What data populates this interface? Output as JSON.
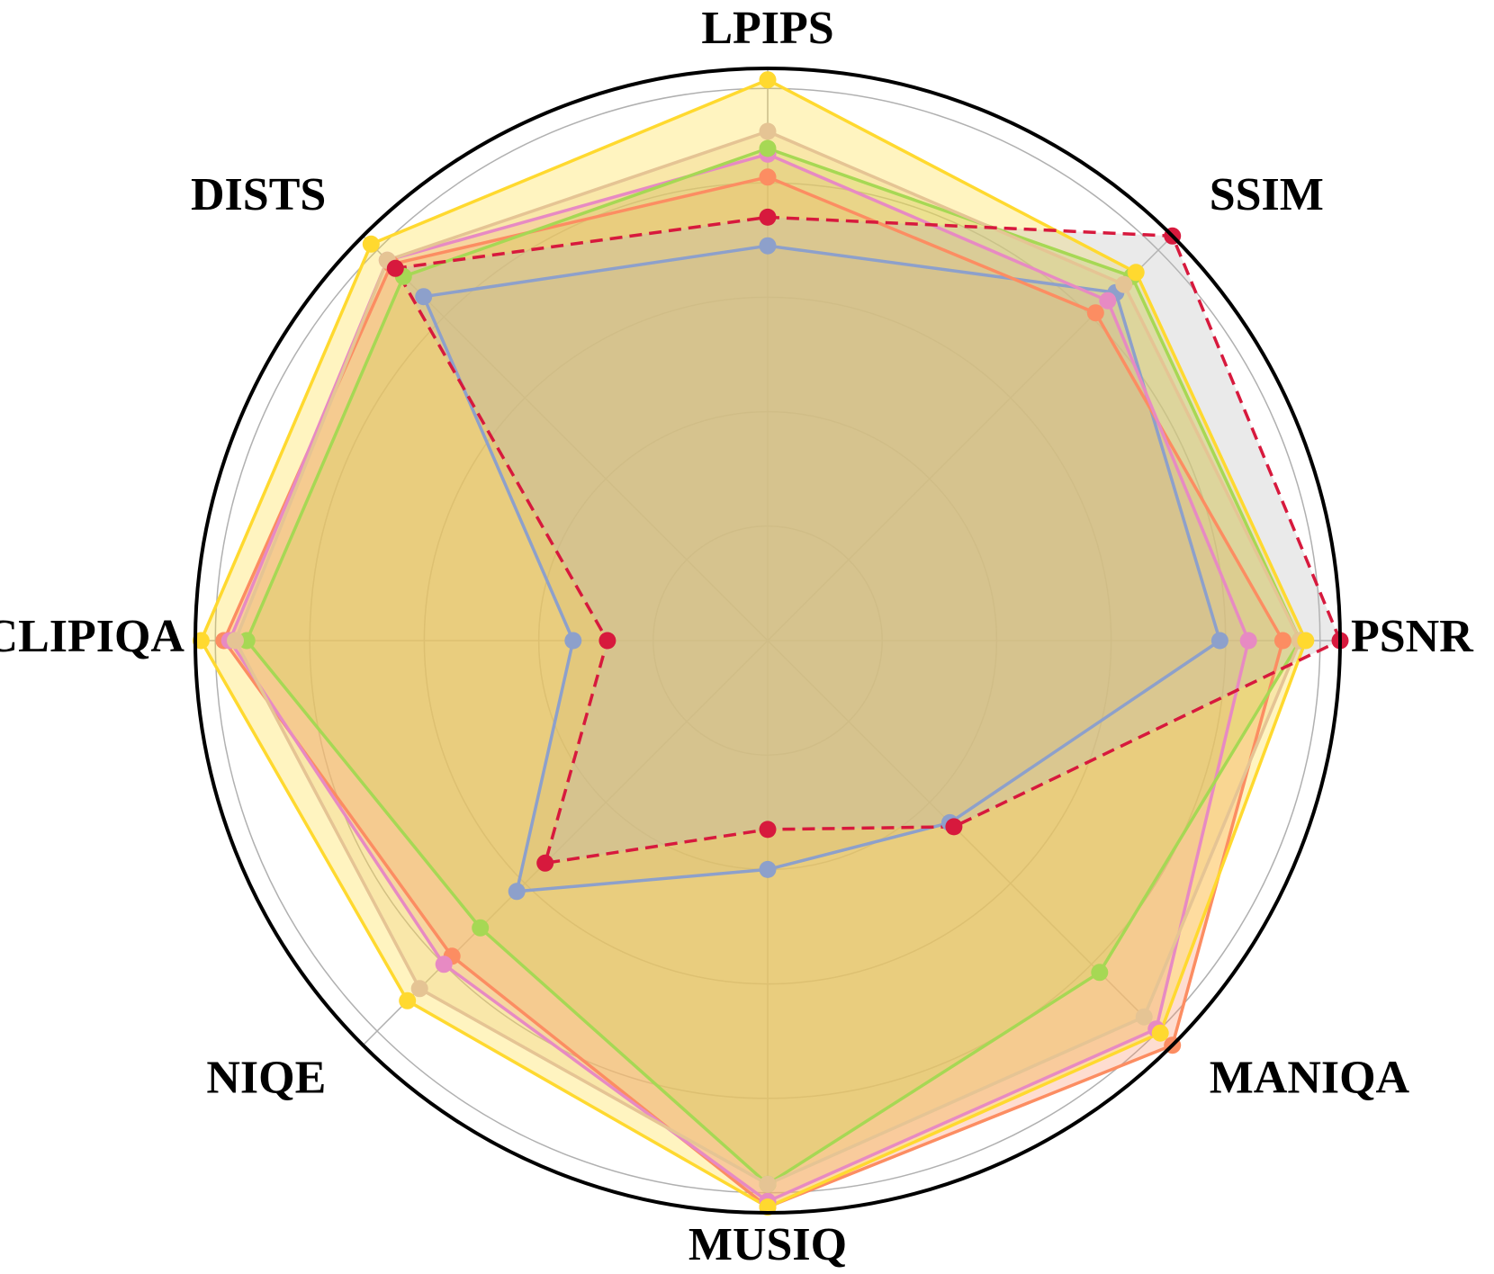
{
  "chart_data": {
    "type": "radar",
    "title": "",
    "axes": [
      "PSNR",
      "SSIM",
      "LPIPS",
      "DISTS",
      "CLIPIQA",
      "NIQE",
      "MUSIQ",
      "MANIQA"
    ],
    "rlim": [
      0,
      1
    ],
    "grid": true,
    "gridlines": [
      0.2,
      0.4,
      0.6,
      0.8,
      1.0
    ],
    "series": [
      {
        "color": "#8da0cb",
        "style": "solid",
        "fill": "#8da0cb",
        "values": [
          0.79,
          0.86,
          0.69,
          0.85,
          0.34,
          0.62,
          0.4,
          0.45
        ]
      },
      {
        "color": "#fc8d62",
        "style": "solid",
        "fill": "#fc8d62",
        "values": [
          0.9,
          0.81,
          0.81,
          0.93,
          0.95,
          0.78,
          0.99,
          1.0
        ]
      },
      {
        "color": "#e78ac3",
        "style": "solid",
        "fill": "#e78ac3",
        "values": [
          0.84,
          0.84,
          0.85,
          0.94,
          0.94,
          0.8,
          0.98,
          0.96
        ]
      },
      {
        "color": "#a6d854",
        "style": "solid",
        "fill": "#a6d854",
        "values": [
          0.93,
          0.9,
          0.86,
          0.9,
          0.91,
          0.71,
          0.95,
          0.82
        ]
      },
      {
        "color": "#e5c494",
        "style": "solid",
        "fill": "#e5c494",
        "values": [
          0.93,
          0.88,
          0.89,
          0.94,
          0.93,
          0.86,
          0.95,
          0.93
        ]
      },
      {
        "color": "#ffd92f",
        "style": "solid",
        "fill": "#ffd92f",
        "values": [
          0.94,
          0.91,
          0.98,
          0.98,
          0.99,
          0.89,
          0.99,
          0.97
        ]
      },
      {
        "color": "#d7193d",
        "style": "dashed",
        "fill": "#bbbbbb",
        "values": [
          1.0,
          1.0,
          0.74,
          0.92,
          0.28,
          0.55,
          0.33,
          0.46
        ]
      }
    ]
  }
}
